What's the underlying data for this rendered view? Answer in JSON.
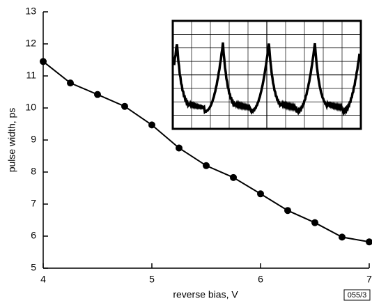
{
  "chart_data": {
    "type": "line",
    "x_label": "reverse bias, V",
    "y_label": "pulse width, ps",
    "annotation": "055/3",
    "x": [
      4,
      4.25,
      4.5,
      4.75,
      5,
      5.25,
      5.5,
      5.75,
      6,
      6.25,
      6.5,
      6.75,
      7
    ],
    "values": [
      11.45,
      10.78,
      10.42,
      10.05,
      9.47,
      8.75,
      8.2,
      7.83,
      7.32,
      6.8,
      6.42,
      5.97,
      5.82
    ],
    "color": "#000000",
    "xlim": [
      4,
      7
    ],
    "xticks": [
      4,
      5,
      6,
      7
    ],
    "ylim": [
      5,
      13
    ],
    "yticks": [
      5,
      6,
      7,
      8,
      9,
      10,
      11,
      12,
      13
    ],
    "grid": false
  }
}
